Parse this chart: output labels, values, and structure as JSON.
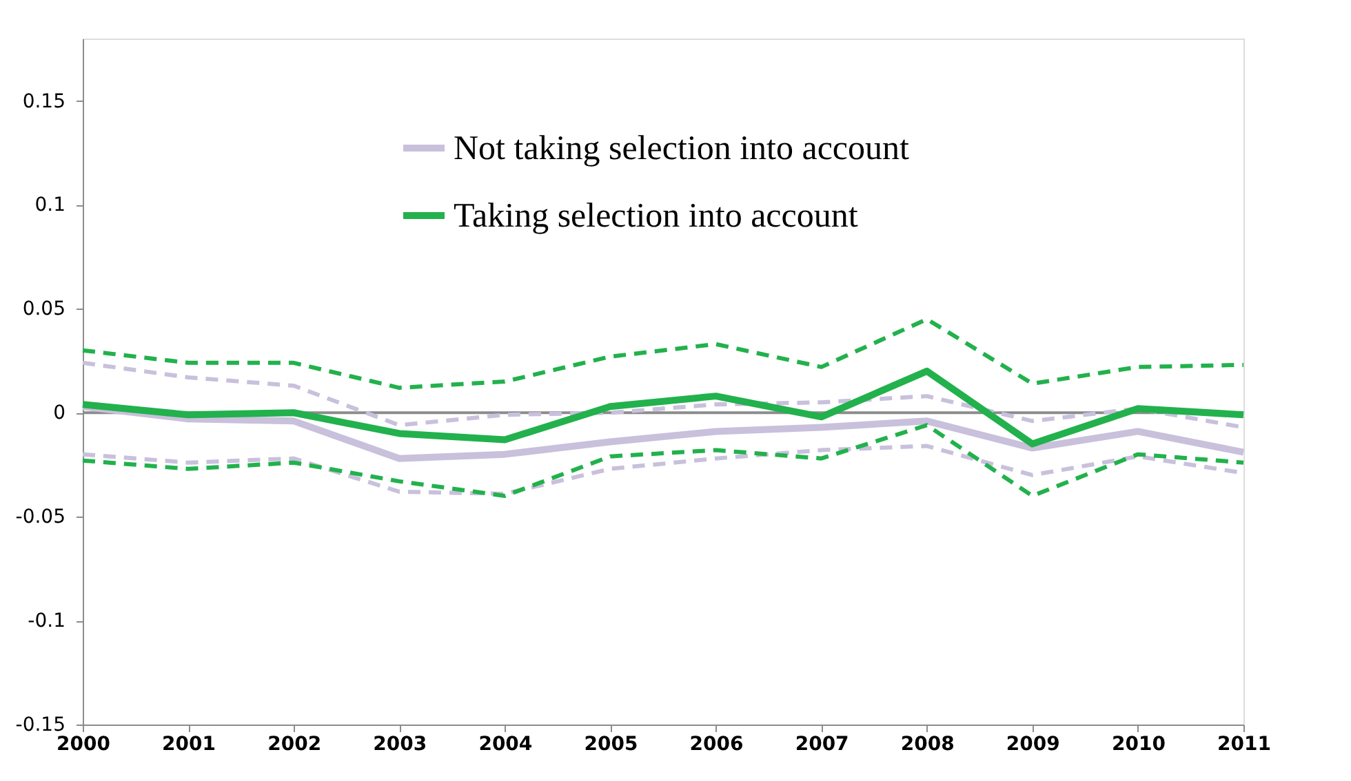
{
  "chart_data": {
    "type": "line",
    "x": [
      2000,
      2001,
      2002,
      2003,
      2004,
      2005,
      2006,
      2007,
      2008,
      2009,
      2010,
      2011
    ],
    "xlim": [
      2000,
      2011
    ],
    "xticks": [
      2000,
      2001,
      2002,
      2003,
      2004,
      2005,
      2006,
      2007,
      2008,
      2009,
      2010,
      2011
    ],
    "ylim": [
      -0.15,
      0.18
    ],
    "yticks": [
      -0.15,
      -0.1,
      -0.05,
      0,
      0.05,
      0.1,
      0.15
    ],
    "grid": false,
    "legend": "top",
    "marker": "none",
    "ref_lines": [
      {
        "axis": "y",
        "value": 0,
        "color": "#8c8c8c"
      }
    ],
    "series": [
      {
        "name": "Not taking selection into account",
        "color": "#c9c0dc",
        "line_style": "solid",
        "values": [
          0.003,
          -0.003,
          -0.004,
          -0.022,
          -0.02,
          -0.014,
          -0.009,
          -0.007,
          -0.004,
          -0.017,
          -0.009,
          -0.019
        ]
      },
      {
        "color": "#c9c0dc",
        "line_style": "dashed",
        "values": [
          0.024,
          0.017,
          0.013,
          -0.006,
          -0.001,
          0.0,
          0.004,
          0.005,
          0.008,
          -0.004,
          0.002,
          -0.007
        ]
      },
      {
        "color": "#c9c0dc",
        "line_style": "dashed",
        "values": [
          -0.02,
          -0.024,
          -0.022,
          -0.038,
          -0.039,
          -0.027,
          -0.022,
          -0.018,
          -0.016,
          -0.03,
          -0.021,
          -0.029
        ]
      },
      {
        "name": "Taking selection into account",
        "color": "#22b14c",
        "line_style": "solid",
        "values": [
          0.004,
          -0.001,
          0.0,
          -0.01,
          -0.013,
          0.003,
          0.008,
          -0.002,
          0.02,
          -0.015,
          0.002,
          -0.001
        ]
      },
      {
        "color": "#22b14c",
        "line_style": "dashed",
        "values": [
          0.03,
          0.024,
          0.024,
          0.012,
          0.015,
          0.027,
          0.033,
          0.022,
          0.045,
          0.014,
          0.022,
          0.023
        ]
      },
      {
        "color": "#22b14c",
        "line_style": "dashed",
        "values": [
          -0.023,
          -0.027,
          -0.024,
          -0.033,
          -0.04,
          -0.021,
          -0.018,
          -0.022,
          -0.006,
          -0.04,
          -0.02,
          -0.024
        ]
      }
    ]
  }
}
